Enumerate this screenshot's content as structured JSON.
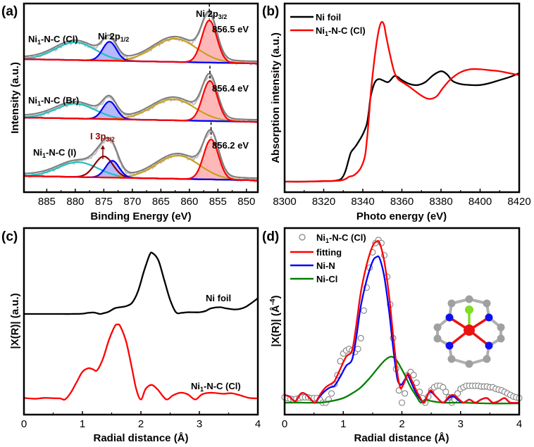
{
  "chart_data": [
    {
      "id": "a",
      "type": "line",
      "panel_label": "(a)",
      "title": "",
      "xlabel": "Binding Energy (eV)",
      "ylabel": "Intensity (a.u.)",
      "xlim": [
        889,
        848
      ],
      "x_reversed": true,
      "x_ticks": [
        885,
        880,
        875,
        870,
        865,
        860,
        855,
        850
      ],
      "y_ticks_visible": false,
      "grid": false,
      "component_colors": {
        "raw": "#c0c0c0",
        "envelope": "#808080",
        "ni2p32": "#ff0000",
        "ni2p12": "#0000ff",
        "sat_1": "#c8a020",
        "sat_2": "#20c0c0",
        "i3p32": "#8b0000",
        "baseline": "#1e1e9e"
      },
      "peak_labels": {
        "ni2p12": {
          "main": "Ni 2p",
          "sub": "1/2"
        },
        "ni2p32": {
          "main": "Ni 2p",
          "sub": "3/2"
        },
        "i3p32": {
          "main": "I 3p",
          "sub": "3/2"
        }
      },
      "samples": [
        {
          "name": "Ni1-N-C (Cl)",
          "label_main": "Ni",
          "label_sub": "1",
          "label_rest": "-N-C (Cl)",
          "ni2p32_position_label": "856.5 eV",
          "components": {
            "ni2p32": {
              "center": 856.5,
              "height": 1.0,
              "width": 1.3
            },
            "ni2p12": {
              "center": 874.0,
              "height": 0.45,
              "width": 1.2
            },
            "sat_1": {
              "center": 862.5,
              "height": 0.55,
              "width": 3.8
            },
            "sat_2": {
              "center": 880.0,
              "height": 0.42,
              "width": 3.5
            }
          }
        },
        {
          "name": "Ni1-N-C (Br)",
          "label_main": "Ni",
          "label_sub": "1",
          "label_rest": "-N-C (Br)",
          "ni2p32_position_label": "856.4 eV",
          "components": {
            "ni2p32": {
              "center": 856.4,
              "height": 0.95,
              "width": 1.3
            },
            "ni2p12": {
              "center": 874.0,
              "height": 0.42,
              "width": 1.2
            },
            "sat_1": {
              "center": 862.8,
              "height": 0.5,
              "width": 3.8
            },
            "sat_2": {
              "center": 880.0,
              "height": 0.35,
              "width": 3.5
            }
          }
        },
        {
          "name": "Ni1-N-C (I)",
          "label_main": "Ni",
          "label_sub": "1",
          "label_rest": "-N-C (I)",
          "ni2p32_position_label": "856.2 eV",
          "components": {
            "ni2p32": {
              "center": 856.2,
              "height": 0.95,
              "width": 1.3
            },
            "ni2p12": {
              "center": 873.5,
              "height": 0.4,
              "width": 1.2
            },
            "i3p32": {
              "center": 875.0,
              "height": 0.5,
              "width": 1.6
            },
            "sat_1": {
              "center": 862.0,
              "height": 0.55,
              "width": 3.8
            },
            "sat_2": {
              "center": 879.5,
              "height": 0.35,
              "width": 3.5
            }
          }
        }
      ]
    },
    {
      "id": "b",
      "type": "line",
      "panel_label": "(b)",
      "title": "",
      "xlabel": "Photo energy (eV)",
      "ylabel": "Absorption intensity (a.u.)",
      "xlim": [
        8300,
        8420
      ],
      "ylim": [
        0,
        1.6
      ],
      "x_ticks": [
        8300,
        8320,
        8340,
        8360,
        8380,
        8400,
        8420
      ],
      "y_ticks_visible": false,
      "grid": false,
      "legend_position": "top-left",
      "series": [
        {
          "name": "Ni foil",
          "color": "#000000",
          "x": [
            8300,
            8310,
            8320,
            8326,
            8329,
            8331,
            8333,
            8334,
            8336,
            8338,
            8340,
            8342,
            8343,
            8344,
            8346,
            8348,
            8350,
            8353,
            8356,
            8358,
            8360,
            8364,
            8368,
            8372,
            8376,
            8380,
            8383,
            8386,
            8390,
            8395,
            8400,
            8405,
            8410,
            8415,
            8420
          ],
          "y": [
            0.0,
            0.0,
            0.005,
            0.01,
            0.03,
            0.1,
            0.24,
            0.3,
            0.35,
            0.41,
            0.48,
            0.58,
            0.7,
            0.86,
            1.0,
            1.04,
            1.03,
            1.01,
            1.07,
            1.06,
            1.03,
            0.99,
            0.98,
            1.01,
            1.08,
            1.12,
            1.09,
            1.02,
            0.99,
            0.98,
            0.98,
            1.0,
            1.03,
            1.06,
            1.1
          ]
        },
        {
          "name": "Ni1-N-C (Cl)",
          "label_main": "Ni",
          "label_sub": "1",
          "label_rest": "-N-C (Cl)",
          "color": "#ff0000",
          "x": [
            8300,
            8310,
            8320,
            8328,
            8331,
            8333,
            8335,
            8337,
            8339,
            8341,
            8342,
            8343,
            8344,
            8345,
            8346,
            8347,
            8348,
            8349,
            8350,
            8351,
            8352,
            8354,
            8356,
            8358,
            8361,
            8364,
            8368,
            8372,
            8375,
            8378,
            8381,
            8385,
            8390,
            8395,
            8400,
            8405,
            8410,
            8415,
            8420
          ],
          "y": [
            0.0,
            0.0,
            0.005,
            0.01,
            0.025,
            0.05,
            0.06,
            0.09,
            0.14,
            0.25,
            0.4,
            0.62,
            0.88,
            1.08,
            1.25,
            1.4,
            1.52,
            1.6,
            1.62,
            1.58,
            1.47,
            1.28,
            1.12,
            1.04,
            1.0,
            0.96,
            0.9,
            0.85,
            0.84,
            0.87,
            0.95,
            1.04,
            1.11,
            1.14,
            1.14,
            1.13,
            1.12,
            1.1,
            1.08
          ]
        }
      ]
    },
    {
      "id": "c",
      "type": "line",
      "panel_label": "(c)",
      "title": "",
      "xlabel": "Radial distance (Å)",
      "ylabel": "|X(R)| (a.u.)",
      "xlim": [
        0,
        4
      ],
      "x_ticks": [
        0,
        1,
        2,
        3,
        4
      ],
      "y_ticks_visible": false,
      "grid": false,
      "series": [
        {
          "name": "Ni foil",
          "color": "#000000",
          "x": [
            0,
            0.2,
            0.4,
            0.6,
            0.8,
            1.0,
            1.1,
            1.2,
            1.3,
            1.35,
            1.45,
            1.55,
            1.65,
            1.75,
            1.85,
            1.95,
            2.05,
            2.15,
            2.2,
            2.3,
            2.4,
            2.5,
            2.6,
            2.7,
            2.8,
            3.0,
            3.1,
            3.2,
            3.35,
            3.45,
            3.6,
            3.7,
            3.8,
            3.9,
            4.0
          ],
          "y": [
            1.0,
            1.0,
            1.0,
            1.0,
            1.0,
            1.005,
            1.02,
            1.025,
            1.0,
            1.01,
            1.04,
            1.1,
            1.12,
            1.14,
            1.2,
            1.4,
            1.75,
            2.05,
            2.08,
            1.95,
            1.6,
            1.25,
            1.03,
            1.02,
            1.03,
            1.03,
            1.05,
            1.1,
            1.12,
            1.1,
            1.08,
            1.09,
            1.13,
            1.2,
            1.28
          ]
        },
        {
          "name": "Ni1-N-C (Cl)",
          "label_main": "Ni",
          "label_sub": "1",
          "label_rest": "-N-C (Cl)",
          "color": "#ff0000",
          "x": [
            0,
            0.1,
            0.2,
            0.35,
            0.5,
            0.62,
            0.7,
            0.8,
            0.9,
            1.0,
            1.1,
            1.18,
            1.25,
            1.35,
            1.45,
            1.55,
            1.6,
            1.65,
            1.75,
            1.85,
            1.92,
            2.0,
            2.08,
            2.18,
            2.28,
            2.38,
            2.45,
            2.55,
            2.68,
            2.8,
            2.93,
            3.05,
            3.2,
            3.4,
            3.55,
            3.7,
            3.85,
            4.0
          ],
          "y": [
            0.05,
            0.04,
            0.035,
            0.05,
            0.045,
            0.04,
            0.02,
            0.15,
            0.35,
            0.55,
            0.62,
            0.6,
            0.58,
            0.8,
            1.15,
            1.42,
            1.46,
            1.42,
            1.12,
            0.6,
            0.22,
            0.02,
            0.22,
            0.3,
            0.22,
            0.08,
            0.02,
            0.1,
            0.15,
            0.12,
            0.02,
            0.12,
            0.15,
            0.13,
            0.14,
            0.1,
            0.05,
            0.04
          ]
        }
      ]
    },
    {
      "id": "d",
      "type": "line",
      "panel_label": "(d)",
      "title": "",
      "xlabel": "Radial distance (Å)",
      "ylabel": "|X(R)| (Å⁻⁴)",
      "ylabel_main": "|X(R)| (Å",
      "ylabel_sup": "-4",
      "ylabel_tail": ")",
      "xlim": [
        0,
        4
      ],
      "ylim": [
        0,
        1.1
      ],
      "x_ticks": [
        0,
        1,
        2,
        3,
        4
      ],
      "y_ticks_visible": false,
      "grid": false,
      "legend_position": "top-left",
      "series": [
        {
          "name": "Ni1-N-C (Cl)",
          "label_main": "Ni",
          "label_sub": "1",
          "label_rest": "-N-C (Cl)",
          "style": "open-circle",
          "color": "#808080",
          "x": [
            0,
            0.05,
            0.1,
            0.15,
            0.2,
            0.25,
            0.3,
            0.35,
            0.4,
            0.45,
            0.5,
            0.55,
            0.6,
            0.65,
            0.7,
            0.75,
            0.8,
            0.85,
            0.9,
            0.95,
            1.0,
            1.05,
            1.1,
            1.15,
            1.2,
            1.25,
            1.3,
            1.35,
            1.4,
            1.45,
            1.5,
            1.55,
            1.6,
            1.65,
            1.7,
            1.75,
            1.8,
            1.85,
            1.9,
            1.95,
            2.0,
            2.05,
            2.1,
            2.15,
            2.2,
            2.25,
            2.3,
            2.35,
            2.4,
            2.45,
            2.5,
            2.55,
            2.6,
            2.65,
            2.7,
            2.75,
            2.8,
            2.85,
            2.9,
            2.95,
            3.0,
            3.05,
            3.1,
            3.15,
            3.2,
            3.25,
            3.3,
            3.35,
            3.4,
            3.45,
            3.5,
            3.55,
            3.6,
            3.65,
            3.7,
            3.75,
            3.8,
            3.85,
            3.9,
            3.95,
            4.0
          ],
          "y": [
            0.035,
            0.03,
            0.025,
            0.02,
            0.025,
            0.03,
            0.035,
            0.035,
            0.035,
            0.03,
            0.03,
            0.03,
            0.02,
            0.0,
            0.0,
            0.02,
            0.06,
            0.12,
            0.18,
            0.27,
            0.32,
            0.34,
            0.35,
            0.34,
            0.33,
            0.35,
            0.42,
            0.6,
            0.75,
            0.88,
            0.98,
            1.04,
            1.06,
            1.04,
            0.96,
            0.82,
            0.64,
            0.42,
            0.22,
            0.08,
            0.0,
            0.06,
            0.18,
            0.2,
            0.18,
            0.13,
            0.07,
            0.03,
            0.0,
            0.04,
            0.08,
            0.1,
            0.11,
            0.11,
            0.1,
            0.07,
            0.035,
            0.0,
            0.02,
            0.06,
            0.09,
            0.1,
            0.11,
            0.11,
            0.11,
            0.11,
            0.11,
            0.105,
            0.105,
            0.105,
            0.1,
            0.1,
            0.09,
            0.085,
            0.08,
            0.07,
            0.06,
            0.05,
            0.04,
            0.035,
            0.03
          ]
        },
        {
          "name": "fitting",
          "color": "#ff0000",
          "x": [
            0,
            0.08,
            0.18,
            0.28,
            0.36,
            0.45,
            0.52,
            0.6,
            0.7,
            0.78,
            0.85,
            0.95,
            1.05,
            1.15,
            1.22,
            1.3,
            1.4,
            1.5,
            1.57,
            1.62,
            1.7,
            1.78,
            1.85,
            1.92,
            1.97,
            2.0,
            2.05,
            2.1,
            2.15,
            2.22,
            2.3,
            2.38,
            2.45,
            2.5,
            2.58,
            2.7,
            2.8,
            2.88,
            2.95,
            3.05,
            3.15,
            3.25,
            3.35,
            3.45,
            3.55,
            3.65,
            3.75,
            3.85,
            4.0
          ],
          "y": [
            0.05,
            0.04,
            0.01,
            0.06,
            0.055,
            0.02,
            0.0,
            0.05,
            0.1,
            0.12,
            0.14,
            0.22,
            0.3,
            0.34,
            0.5,
            0.72,
            0.9,
            1.02,
            1.05,
            1.04,
            0.92,
            0.7,
            0.44,
            0.2,
            0.1,
            0.1,
            0.14,
            0.19,
            0.16,
            0.1,
            0.04,
            0.0,
            0.06,
            0.08,
            0.04,
            0.0,
            0.04,
            0.05,
            0.03,
            0.0,
            0.02,
            0.0,
            0.02,
            0.03,
            0.0,
            0.01,
            0.03,
            0.0,
            0.0
          ]
        },
        {
          "name": "Ni-N",
          "color": "#0000ff",
          "x": [
            0,
            0.08,
            0.18,
            0.28,
            0.36,
            0.45,
            0.52,
            0.6,
            0.7,
            0.78,
            0.85,
            0.95,
            1.05,
            1.15,
            1.22,
            1.3,
            1.4,
            1.5,
            1.57,
            1.62,
            1.7,
            1.78,
            1.85,
            1.92,
            1.97,
            2.0,
            2.05,
            2.1,
            2.15,
            2.22,
            2.3,
            2.38,
            2.45,
            2.5,
            2.58,
            2.7,
            2.8,
            2.88,
            2.95,
            3.05,
            3.15,
            3.25,
            3.35,
            3.45,
            3.55,
            3.65,
            3.75,
            3.85,
            4.0
          ],
          "y": [
            0.05,
            0.04,
            0.01,
            0.06,
            0.055,
            0.02,
            0.0,
            0.04,
            0.08,
            0.1,
            0.11,
            0.17,
            0.24,
            0.28,
            0.42,
            0.63,
            0.8,
            0.92,
            0.95,
            0.94,
            0.82,
            0.6,
            0.36,
            0.16,
            0.12,
            0.12,
            0.15,
            0.18,
            0.14,
            0.08,
            0.03,
            0.0,
            0.06,
            0.07,
            0.04,
            0.0,
            0.03,
            0.04,
            0.02,
            0.0,
            0.02,
            0.0,
            0.02,
            0.03,
            0.0,
            0.01,
            0.03,
            0.0,
            0.0
          ]
        },
        {
          "name": "Ni-Cl",
          "color": "#008000",
          "x": [
            0,
            0.3,
            0.6,
            0.8,
            1.0,
            1.15,
            1.3,
            1.45,
            1.6,
            1.72,
            1.82,
            1.9,
            1.98,
            2.05,
            2.15,
            2.25,
            2.32,
            2.4,
            2.5,
            2.7,
            3.0,
            3.5,
            4.0
          ],
          "y": [
            0.0,
            0.0,
            0.0,
            0.01,
            0.03,
            0.06,
            0.1,
            0.16,
            0.23,
            0.28,
            0.3,
            0.28,
            0.23,
            0.18,
            0.1,
            0.04,
            0.0,
            0.02,
            0.01,
            0.0,
            0.0,
            -0.005,
            -0.005
          ]
        }
      ],
      "inset": {
        "description": "Ni1-N-C (Cl) structural model",
        "atom_colors": {
          "Ni": "#ee1111",
          "N": "#1010ee",
          "C": "#a0a0a0",
          "Cl": "#80dd20"
        }
      }
    }
  ]
}
